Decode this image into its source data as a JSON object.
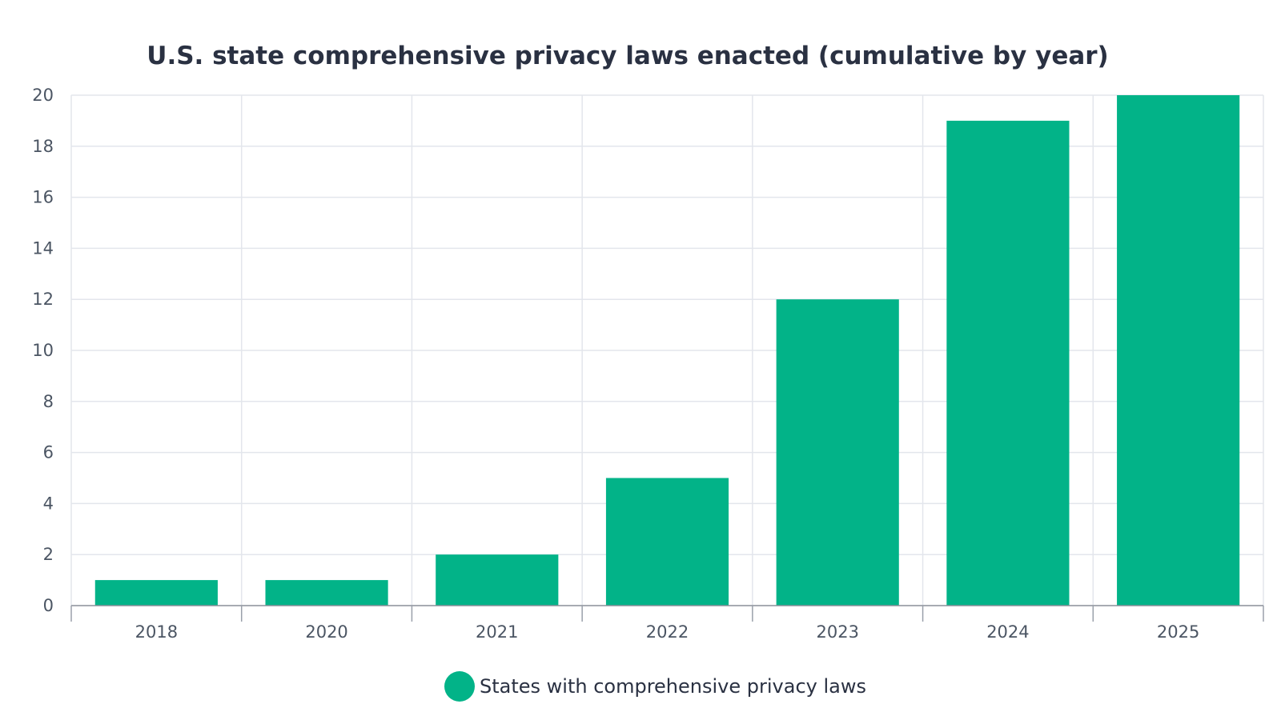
{
  "chart_data": {
    "type": "bar",
    "title": "U.S. state comprehensive privacy laws enacted (cumulative by year)",
    "xlabel": "",
    "ylabel": "",
    "categories": [
      "2018",
      "2020",
      "2021",
      "2022",
      "2023",
      "2024",
      "2025"
    ],
    "series": [
      {
        "name": "States with comprehensive privacy laws",
        "values": [
          1,
          1,
          2,
          5,
          12,
          19,
          20
        ],
        "color": "#02b388"
      }
    ],
    "ylim": [
      0,
      20
    ],
    "yticks": [
      0,
      2,
      4,
      6,
      8,
      10,
      12,
      14,
      16,
      18,
      20
    ],
    "grid": true,
    "legend_position": "bottom-center"
  }
}
